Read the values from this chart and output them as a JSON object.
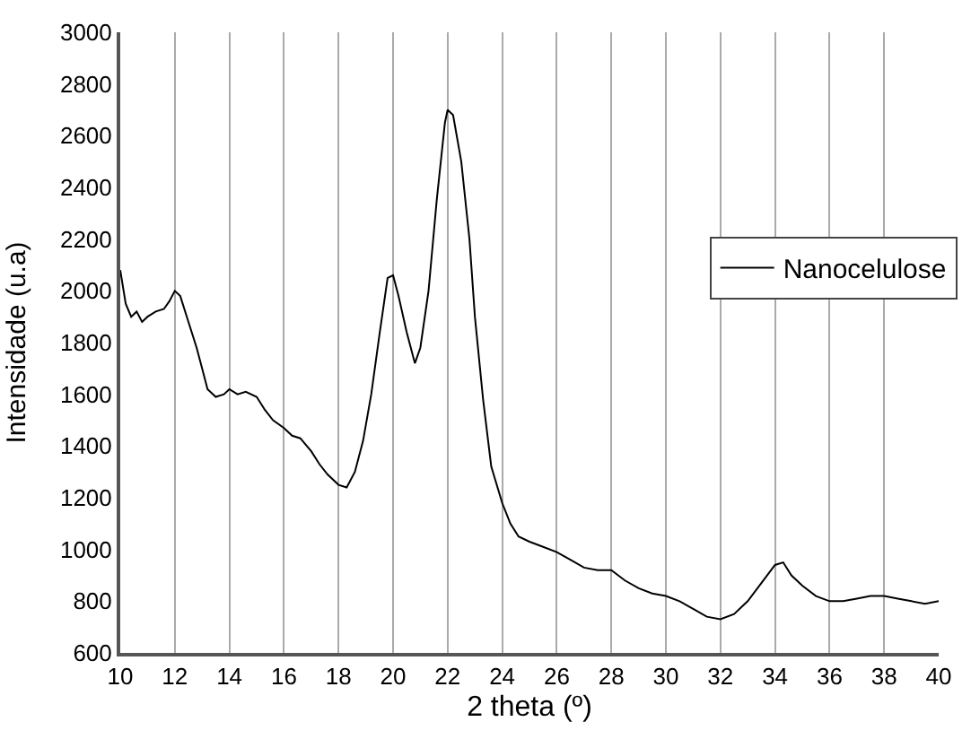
{
  "chart_data": {
    "type": "line",
    "xlabel": "2 theta (º)",
    "ylabel": "Intensidade (u.a)",
    "xlim": [
      10,
      40
    ],
    "xticks": [
      10,
      12,
      14,
      16,
      18,
      20,
      22,
      24,
      26,
      28,
      30,
      32,
      34,
      36,
      38,
      40
    ],
    "ylim": [
      600,
      3000
    ],
    "yticks": [
      600,
      800,
      1000,
      1200,
      1400,
      1600,
      1800,
      2000,
      2200,
      2400,
      2600,
      2800,
      3000
    ],
    "grid": "x",
    "legend": "top right",
    "marker": "none",
    "line_style": "solid",
    "series": [
      {
        "name": "Nanocelulose",
        "color": "#000000",
        "x": [
          10,
          10.2,
          10.4,
          10.6,
          10.8,
          11,
          11.3,
          11.6,
          11.8,
          12,
          12.2,
          12.5,
          12.8,
          13,
          13.2,
          13.5,
          13.8,
          14,
          14.3,
          14.6,
          15,
          15.3,
          15.6,
          16,
          16.3,
          16.6,
          17,
          17.3,
          17.6,
          18,
          18.3,
          18.6,
          18.9,
          19.2,
          19.5,
          19.8,
          20,
          20.2,
          20.5,
          20.8,
          21,
          21.3,
          21.6,
          21.9,
          22,
          22.2,
          22.5,
          22.8,
          23,
          23.3,
          23.6,
          24,
          24.3,
          24.6,
          25,
          25.5,
          26,
          26.5,
          27,
          27.5,
          28,
          28.5,
          29,
          29.5,
          30,
          30.5,
          31,
          31.5,
          32,
          32.5,
          33,
          33.5,
          34,
          34.3,
          34.6,
          35,
          35.5,
          36,
          36.5,
          37,
          37.5,
          38,
          38.5,
          39,
          39.5,
          40
        ],
        "values": [
          2080,
          1950,
          1900,
          1920,
          1880,
          1900,
          1920,
          1930,
          1960,
          2000,
          1980,
          1880,
          1780,
          1700,
          1620,
          1590,
          1600,
          1620,
          1600,
          1610,
          1590,
          1540,
          1500,
          1470,
          1440,
          1430,
          1380,
          1330,
          1290,
          1250,
          1240,
          1300,
          1420,
          1600,
          1830,
          2050,
          2060,
          1980,
          1840,
          1720,
          1780,
          2000,
          2350,
          2650,
          2700,
          2680,
          2500,
          2200,
          1900,
          1580,
          1320,
          1180,
          1100,
          1050,
          1030,
          1010,
          990,
          960,
          930,
          920,
          920,
          880,
          850,
          830,
          820,
          800,
          770,
          740,
          730,
          750,
          800,
          870,
          940,
          950,
          900,
          860,
          820,
          800,
          800,
          810,
          820,
          820,
          810,
          800,
          790,
          800
        ]
      }
    ]
  }
}
